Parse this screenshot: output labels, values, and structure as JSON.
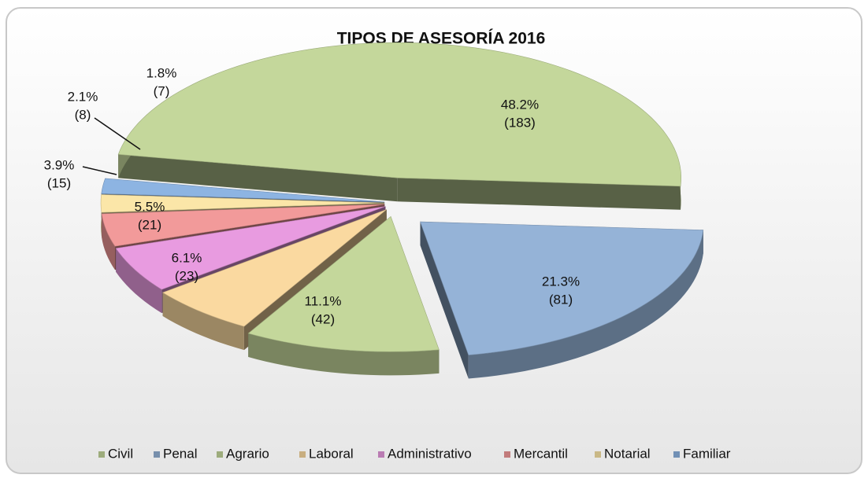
{
  "chart_data": {
    "type": "pie3d",
    "title": "TIPOS DE ASESORÍA 2016",
    "categories": [
      "Civil",
      "Penal",
      "Agrario",
      "Laboral",
      "Administrativo",
      "Mercantil",
      "Notarial",
      "Familiar"
    ],
    "values": [
      48.2,
      21.3,
      11.1,
      6.1,
      5.5,
      3.9,
      2.1,
      1.8
    ],
    "value_labels": [
      "48.2%",
      "21.3%",
      "11.1%",
      "6.1%",
      "5.5%",
      "3.9%",
      "2.1%",
      "1.8%"
    ],
    "counts": [
      183,
      81,
      42,
      23,
      21,
      15,
      8,
      7
    ],
    "count_labels": [
      "(183)",
      "(81)",
      "(42)",
      "(23)",
      "(21)",
      "(15)",
      "(8)",
      "(7)"
    ],
    "colors": [
      "#c4d79b",
      "#95b3d7",
      "#c4d79b",
      "#fad9a0",
      "#e89be0",
      "#f29a9a",
      "#fbe6a8",
      "#8db4e2"
    ],
    "legend": "bottom"
  }
}
